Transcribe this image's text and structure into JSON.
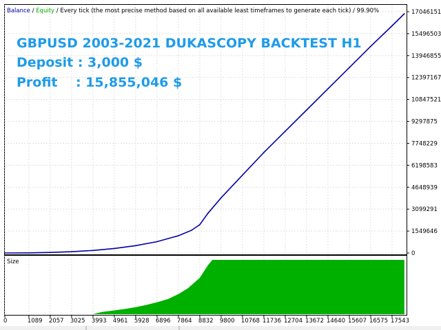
{
  "header": {
    "balance_label": "Balance",
    "sep1": " / ",
    "equity_label": "Equity",
    "sep2": " / ",
    "description": "Every tick (the most precise method based on all available least timeframes to generate each tick)",
    "sep3": " / ",
    "quality": "99.90%"
  },
  "overlay": {
    "title": "GBPUSD 2003-2021 DUKASCOPY BACKTEST H1",
    "deposit": "Deposit : 3,000 $",
    "profit": "Profit    : 15,855,046 $"
  },
  "colors": {
    "balance": "#0000a0",
    "equity": "#00b000",
    "size_fill": "#00b000",
    "overlay_text": "#1e9be9",
    "grid": "#e0e0e0",
    "axis_text": "#000000"
  },
  "chart_data": [
    {
      "type": "line",
      "title": "",
      "xlim": [
        0,
        18200
      ],
      "ylim": [
        0,
        17046151
      ],
      "y_ticks": [
        "17046151",
        "15496503",
        "13946855",
        "12397167",
        "10847521",
        "9297875",
        "7748229",
        "6198583",
        "4648939",
        "3099291",
        "1549646",
        "0"
      ],
      "grid": true,
      "series": [
        {
          "name": "Balance",
          "x": [
            0,
            1089,
            2057,
            3025,
            3993,
            4961,
            5928,
            6896,
            7864,
            8450,
            8832,
            9200,
            9800,
            10768,
            11736,
            12704,
            13672,
            14640,
            15607,
            16575,
            17543,
            18100
          ],
          "y": [
            0,
            10000,
            40000,
            90000,
            180000,
            320000,
            520000,
            800000,
            1220000,
            1600000,
            2000000,
            2800000,
            3900000,
            5500000,
            7100000,
            8600000,
            10100000,
            11600000,
            13100000,
            14600000,
            16050000,
            16900000
          ]
        }
      ]
    },
    {
      "type": "area",
      "title": "Size",
      "xlim": [
        0,
        18200
      ],
      "grid": true,
      "x_ticks": [
        "0",
        "1089",
        "2057",
        "3025",
        "3993",
        "4961",
        "5928",
        "6896",
        "7864",
        "8832",
        "9800",
        "10768",
        "11736",
        "12704",
        "13672",
        "14640",
        "15607",
        "16575",
        "17543"
      ],
      "series": [
        {
          "name": "Size",
          "x": [
            3993,
            4400,
            4961,
            5500,
            5928,
            6400,
            6896,
            7400,
            7864,
            8300,
            8832,
            9200,
            9400,
            18100
          ],
          "y": [
            0,
            0.04,
            0.07,
            0.1,
            0.13,
            0.17,
            0.22,
            0.28,
            0.37,
            0.48,
            0.67,
            0.9,
            1,
            1
          ]
        }
      ]
    }
  ]
}
